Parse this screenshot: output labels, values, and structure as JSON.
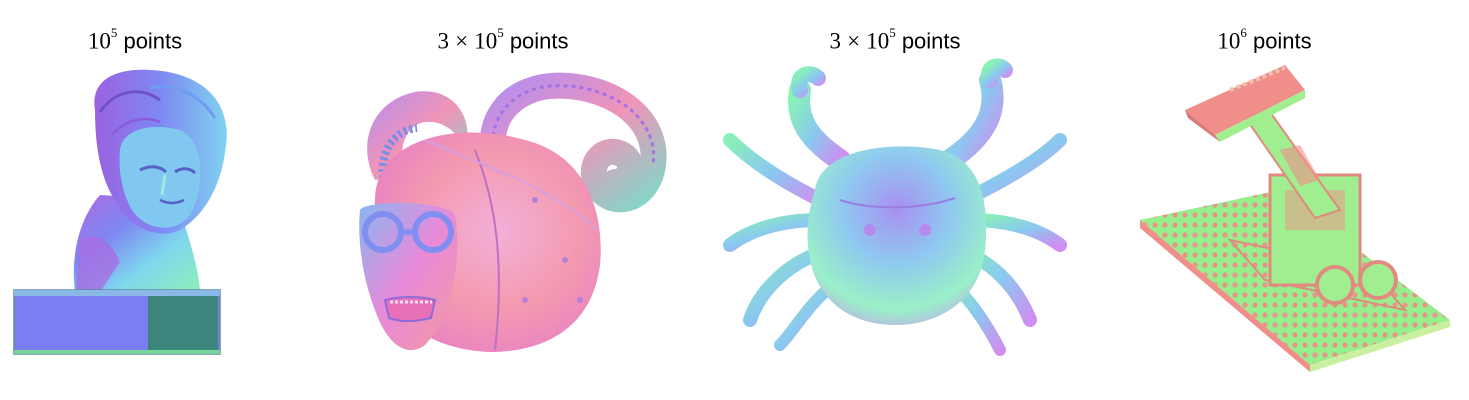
{
  "panels": [
    {
      "prefix": "",
      "times": "",
      "base": "10",
      "exponent": "5",
      "word": "points",
      "subject": "Beethoven bust"
    },
    {
      "prefix": "3",
      "times": "×",
      "base": "10",
      "exponent": "5",
      "word": "points",
      "subject": "Horned helmet mask"
    },
    {
      "prefix": "3",
      "times": "×",
      "base": "10",
      "exponent": "5",
      "word": "points",
      "subject": "Crab"
    },
    {
      "prefix": "",
      "times": "",
      "base": "10",
      "exponent": "6",
      "word": "points",
      "subject": "Lego excavator"
    }
  ],
  "colors": {
    "normal_blue": "#7a7df0",
    "normal_purple": "#a46ee6",
    "normal_green": "#8ef08e",
    "normal_pink": "#f08fa0",
    "normal_cyan": "#7fdff0",
    "normal_teal": "#3b857c"
  }
}
